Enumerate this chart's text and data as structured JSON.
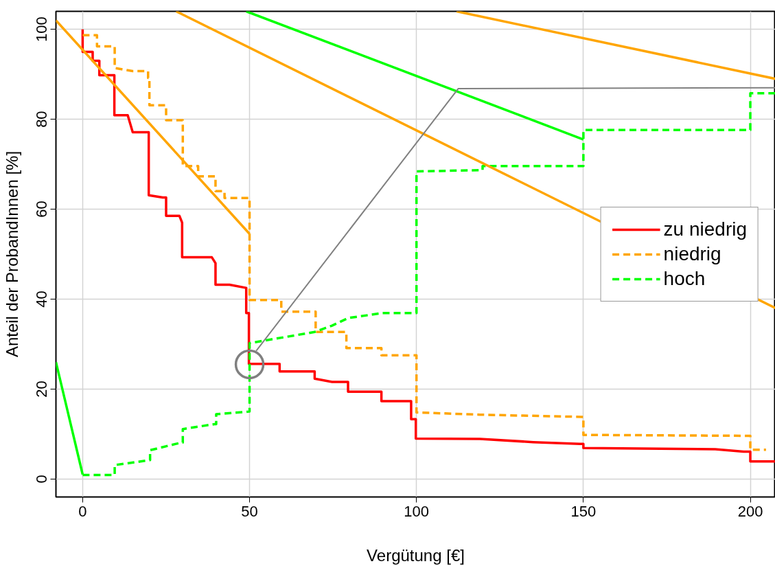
{
  "chart_data": {
    "type": "line",
    "xlabel": "Vergütung [€]",
    "ylabel": "Anteil der ProbandInnen [%]",
    "xlim": [
      -8,
      207.5
    ],
    "ylim": [
      -4,
      104
    ],
    "xticks": [
      0,
      50,
      100,
      150,
      200
    ],
    "yticks": [
      0,
      20,
      40,
      60,
      80,
      100
    ],
    "grid": true,
    "legend": "right",
    "series": [
      {
        "name": "zu niedrig",
        "color": "#ff0000",
        "line_style": "solid",
        "x": [
          0,
          0,
          3,
          3,
          5,
          5,
          9.5,
          9.5,
          13.5,
          15,
          19.8,
          19.8,
          24,
          25,
          25,
          29,
          29.8,
          29.8,
          38.7,
          39.8,
          39.8,
          44,
          49,
          49,
          49.8,
          49.8,
          59,
          59,
          69.5,
          69.5,
          74.7,
          79.5,
          79.5,
          89.5,
          89.5,
          98.4,
          98.4,
          99.8,
          99.8,
          119,
          135,
          149,
          150,
          150,
          189.5,
          198,
          200,
          200,
          207.5
        ],
        "values": [
          100,
          95,
          95,
          93,
          93,
          89.8,
          89.8,
          80.9,
          80.9,
          77.1,
          77.1,
          63.1,
          62.6,
          62.6,
          58.5,
          58.5,
          57,
          49.3,
          49.3,
          48,
          43.2,
          43.2,
          42.5,
          36.9,
          36.9,
          25.6,
          25.6,
          23.9,
          23.9,
          22.3,
          21.6,
          21.6,
          19.4,
          19.4,
          17.3,
          17.3,
          13.3,
          13.3,
          9.0,
          8.9,
          8.2,
          7.8,
          7.8,
          6.9,
          6.6,
          6.1,
          6.1,
          3.9,
          3.9
        ]
      },
      {
        "name": "niedrig",
        "color": "#ffa500",
        "line_style": "dashed",
        "x": [
          0,
          4.3,
          4.3,
          9.6,
          9.6,
          15,
          19.6,
          19.6,
          20,
          20,
          25,
          25,
          30,
          30,
          34.6,
          34.6,
          39.8,
          39.8,
          42.5,
          42.5,
          50,
          50,
          59.5,
          59.5,
          69.8,
          69.8,
          79,
          79,
          89.5,
          89.5,
          100,
          100,
          119,
          150,
          150,
          200,
          200,
          204.7
        ],
        "values": [
          98.7,
          98.7,
          96.2,
          96.2,
          91.4,
          90.7,
          90.7,
          89.2,
          89.2,
          83.1,
          83.1,
          79.8,
          79.8,
          69.6,
          69.6,
          67.3,
          67.3,
          64.0,
          64.0,
          62.5,
          62.5,
          39.8,
          39.8,
          37.2,
          37.2,
          32.7,
          32.7,
          29.1,
          29.1,
          27.5,
          27.5,
          14.8,
          14.3,
          13.8,
          9.8,
          9.6,
          6.5,
          6.5
        ]
      },
      {
        "name": "hoch",
        "color": "#00ff00",
        "line_style": "dashed",
        "x": [
          0,
          9.6,
          9.6,
          20.2,
          20.2,
          29.6,
          30,
          30,
          39.5,
          40,
          40,
          50,
          50,
          50,
          69.5,
          74.7,
          79.6,
          89.8,
          100,
          100,
          119.8,
          119.8,
          150,
          150,
          200,
          200,
          207.5
        ],
        "values": [
          0.9,
          0.9,
          3.1,
          4.2,
          6.4,
          8.1,
          8.1,
          11.1,
          12.2,
          12.2,
          14.4,
          15.0,
          15.0,
          30.2,
          32.7,
          34.1,
          35.8,
          36.9,
          36.9,
          68.4,
          68.7,
          69.6,
          69.6,
          77.6,
          77.6,
          85.8,
          85.8
        ]
      },
      {
        "type": "line",
        "color": "#ffa500",
        "line_style": "solid",
        "x": [
          -8,
          50
        ],
        "values": [
          102,
          54.5
        ]
      },
      {
        "type": "line",
        "color": "#ffa500",
        "line_style": "solid",
        "x": [
          28,
          207.5
        ],
        "values": [
          104,
          38
        ]
      },
      {
        "type": "line",
        "color": "#ffa500",
        "line_style": "solid",
        "x": [
          112,
          207.5
        ],
        "values": [
          104,
          89
        ]
      },
      {
        "type": "line",
        "color": "#00ff00",
        "line_style": "solid",
        "x": [
          -8,
          0
        ],
        "values": [
          26,
          1
        ]
      },
      {
        "type": "line",
        "color": "#00ff00",
        "line_style": "solid",
        "x": [
          49,
          150
        ],
        "values": [
          104,
          75.5
        ]
      },
      {
        "type": "line",
        "color": "#808080",
        "line_style": "solid",
        "x": [
          52,
          112.5,
          207.5
        ],
        "values": [
          28.5,
          86.8,
          87
        ]
      },
      {
        "type": "scatter",
        "color": "#808080",
        "marker": "circle",
        "x": [
          50
        ],
        "values": [
          25.5
        ]
      }
    ]
  }
}
